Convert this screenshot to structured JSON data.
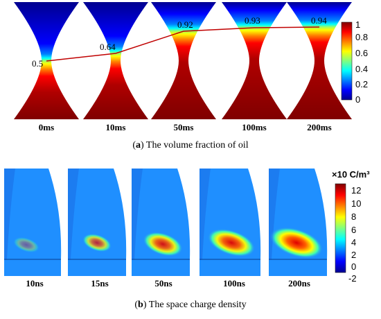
{
  "panel_a": {
    "time_labels": [
      "0ms",
      "10ms",
      "50ms",
      "100ms",
      "200ms"
    ],
    "interface_values": [
      "0.5",
      "0.64",
      "0.92",
      "0.93",
      "0.94"
    ],
    "colorbar_ticks": [
      "1",
      "0.8",
      "0.6",
      "0.4",
      "0.2",
      "0"
    ],
    "caption_letter": "a",
    "caption_text": " The volume fraction of oil"
  },
  "panel_b": {
    "time_labels": [
      "10ns",
      "15ns",
      "50ns",
      "100ns",
      "200ns"
    ],
    "colorbar_unit": "×10 C/m³",
    "colorbar_ticks": [
      "12",
      "10",
      "8",
      "6",
      "4",
      "2",
      "0",
      "-2"
    ],
    "caption_letter": "b",
    "caption_text": " The space charge density"
  },
  "colors": {
    "colormap": [
      "#00008f",
      "#0000ff",
      "#0080ff",
      "#00ffff",
      "#80ff80",
      "#ffff00",
      "#ff8000",
      "#ff0000",
      "#800000"
    ],
    "interface_line": "#c00000"
  }
}
